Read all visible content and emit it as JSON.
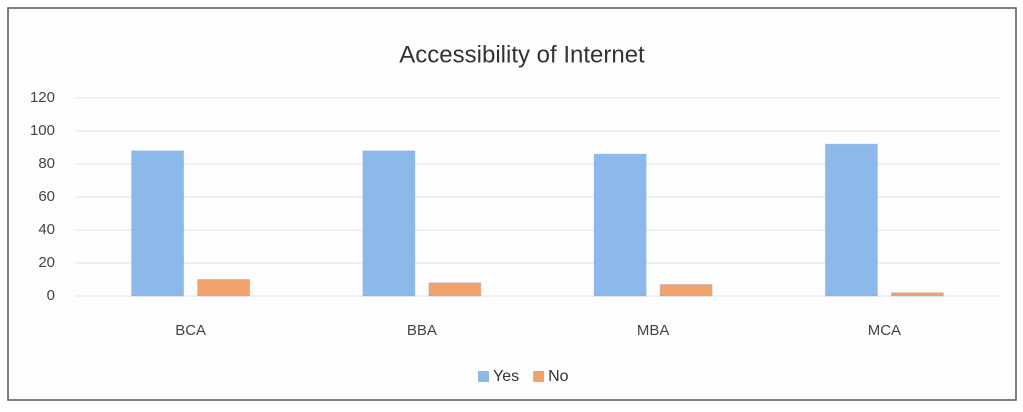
{
  "chart_data": {
    "type": "bar",
    "title": "Accessibility of Internet",
    "categories": [
      "BCA",
      "BBA",
      "MBA",
      "MCA"
    ],
    "series": [
      {
        "name": "Yes",
        "color": "#8db9ea",
        "values": [
          88,
          88,
          86,
          92
        ]
      },
      {
        "name": "No",
        "color": "#f2a36c",
        "values": [
          10,
          8,
          7,
          2
        ]
      }
    ],
    "ylim": [
      0,
      120
    ],
    "yticks": [
      0,
      20,
      40,
      60,
      80,
      100,
      120
    ],
    "grid": true,
    "legend": "bottom"
  }
}
